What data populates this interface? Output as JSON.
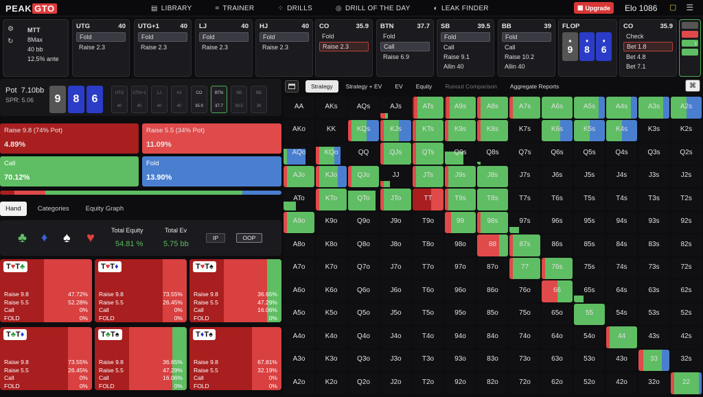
{
  "logo": {
    "text1": "PEAK",
    "text2": "GTO"
  },
  "nav": [
    {
      "label": "LIBRARY",
      "icon": "book-icon"
    },
    {
      "label": "TRAINER",
      "icon": "gamepad-icon"
    },
    {
      "label": "DRILLS",
      "icon": "dots-icon"
    },
    {
      "label": "DRILL OF THE DAY",
      "icon": "target-icon"
    },
    {
      "label": "LEAK FINDER",
      "icon": "drop-icon"
    }
  ],
  "upgrade_label": "Upgrade",
  "elo": "Elo 1086",
  "game_info": {
    "type": "MTT",
    "players": "8Max",
    "stack": "40 bb",
    "ante": "12.5% ante"
  },
  "positions": [
    {
      "name": "UTG",
      "stack": "40",
      "actions": [
        "Fold",
        "Raise 2.3"
      ],
      "selected": 0
    },
    {
      "name": "UTG+1",
      "stack": "40",
      "actions": [
        "Fold",
        "Raise 2.3"
      ],
      "selected": 0
    },
    {
      "name": "LJ",
      "stack": "40",
      "actions": [
        "Fold",
        "Raise 2.3"
      ],
      "selected": 0
    },
    {
      "name": "HJ",
      "stack": "40",
      "actions": [
        "Fold",
        "Raise 2.3"
      ],
      "selected": 0
    },
    {
      "name": "CO",
      "stack": "35.9",
      "actions": [
        "Fold",
        "Raise 2.3"
      ],
      "selected": 1
    },
    {
      "name": "BTN",
      "stack": "37.7",
      "actions": [
        "Fold",
        "Call",
        "Raise 6.9"
      ],
      "selected": 1
    },
    {
      "name": "SB",
      "stack": "39.5",
      "actions": [
        "Fold",
        "Call",
        "Raise 9.1",
        "Allin 40"
      ],
      "selected": 0
    },
    {
      "name": "BB",
      "stack": "39",
      "actions": [
        "Fold",
        "Call",
        "Raise 10.2",
        "Allin 40"
      ],
      "selected": 0
    }
  ],
  "flop": {
    "label": "FLOP",
    "cards": [
      "9",
      "8",
      "6"
    ]
  },
  "co_card": {
    "name": "CO",
    "stack": "35.9",
    "actions": [
      "Check",
      "Bet 1.8",
      "Bet 4.8",
      "Bet 7.1"
    ],
    "selected": 1
  },
  "pot": {
    "label": "Pot",
    "value": "7.10bb",
    "spr": "SPR: 5.06"
  },
  "board_cards": [
    "9",
    "8",
    "6"
  ],
  "pos_cols": [
    {
      "name": "UTG",
      "val": "40"
    },
    {
      "name": "UTG+1",
      "val": "40"
    },
    {
      "name": "LJ",
      "val": "40"
    },
    {
      "name": "HJ",
      "val": "40"
    },
    {
      "name": "CO",
      "val": "35.9"
    },
    {
      "name": "BTN",
      "val": "37.7"
    },
    {
      "name": "SB",
      "val": "39.5"
    },
    {
      "name": "BB",
      "val": "39"
    }
  ],
  "actions": [
    {
      "label": "Raise 9.8 (74% Pot)",
      "pct": "4.89%",
      "color": "#a91e1e"
    },
    {
      "label": "Raise 5.5 (34% Pot)",
      "pct": "11.09%",
      "color": "#e04a4a"
    },
    {
      "label": "Call",
      "pct": "70.12%",
      "color": "#5fbd63"
    },
    {
      "label": "Fold",
      "pct": "13.90%",
      "color": "#4a7fd0"
    }
  ],
  "tabs": [
    "Hand",
    "Categories",
    "Equity Graph"
  ],
  "equity": {
    "total_equity_label": "Total Equity",
    "total_equity": "54.81 %",
    "total_ev_label": "Total Ev",
    "total_ev": "5.75 bb",
    "ip": "IP",
    "oop": "OOP"
  },
  "combos": [
    {
      "hand": "T♥T♣",
      "lines": [
        [
          "Raise 9.8",
          "47.72%"
        ],
        [
          "Raise 5.5",
          "52.28%"
        ],
        [
          "Call",
          "0%"
        ],
        [
          "FOLD",
          "0%"
        ]
      ],
      "dark": 0.48,
      "green": 0
    },
    {
      "hand": "T♥T♦",
      "lines": [
        [
          "Raise 9.8",
          "73.55%"
        ],
        [
          "Raise 5.5",
          "26.45%"
        ],
        [
          "Call",
          "0%"
        ],
        [
          "FOLD",
          "0%"
        ]
      ],
      "dark": 0.74,
      "green": 0
    },
    {
      "hand": "T♥T♠",
      "lines": [
        [
          "Raise 9.8",
          "36.65%"
        ],
        [
          "Raise 5.5",
          "47.29%"
        ],
        [
          "Call",
          "16.06%"
        ],
        [
          "FOLD",
          "0%"
        ]
      ],
      "dark": 0.37,
      "green": 0.16
    },
    {
      "hand": "T♣T♦",
      "lines": [
        [
          "Raise 9.8",
          "73.55%"
        ],
        [
          "Raise 5.5",
          "26.45%"
        ],
        [
          "Call",
          "0%"
        ],
        [
          "FOLD",
          "0%"
        ]
      ],
      "dark": 0.74,
      "green": 0
    },
    {
      "hand": "T♣T♠",
      "lines": [
        [
          "Raise 9.8",
          "36.65%"
        ],
        [
          "Raise 5.5",
          "47.29%"
        ],
        [
          "Call",
          "16.06%"
        ],
        [
          "FOLD",
          "0%"
        ]
      ],
      "dark": 0.37,
      "green": 0.16
    },
    {
      "hand": "T♦T♠",
      "lines": [
        [
          "Raise 9.8",
          "67.81%"
        ],
        [
          "Raise 5.5",
          "32.19%"
        ],
        [
          "Call",
          "0%"
        ],
        [
          "FOLD",
          "0%"
        ]
      ],
      "dark": 0.68,
      "green": 0
    }
  ],
  "rtabs": [
    "Strategy",
    "Strategy + EV",
    "EV",
    "Equity",
    "Runout Comparison",
    "Aggregate Reports"
  ],
  "grid_ranks": [
    "A",
    "K",
    "Q",
    "J",
    "T",
    "9",
    "8",
    "7",
    "6",
    "5",
    "4",
    "3",
    "2"
  ],
  "grid_freq": {
    "ATs": [
      0.05,
      0.1,
      0.85,
      0
    ],
    "A9s": [
      0.05,
      0.1,
      0.85,
      0
    ],
    "A8s": [
      0,
      0.1,
      0.9,
      0
    ],
    "A7s": [
      0,
      0.12,
      0.88,
      0
    ],
    "A6s": [
      0,
      0,
      1,
      0
    ],
    "A5s": [
      0,
      0,
      0.8,
      0.2
    ],
    "A4s": [
      0,
      0,
      0.8,
      0.2
    ],
    "A3s": [
      0,
      0,
      0.8,
      0.2
    ],
    "A2s": [
      0,
      0,
      0.5,
      0.5
    ],
    "AJs": [
      0,
      0.15,
      0.1,
      0
    ],
    "KQs": [
      0,
      0.1,
      0.5,
      0.4
    ],
    "KJs": [
      0,
      0.1,
      0.5,
      0.4
    ],
    "KTs": [
      0,
      0.1,
      0.9,
      0
    ],
    "K9s": [
      0,
      0.1,
      0.9,
      0
    ],
    "K8s": [
      0,
      0.1,
      0.9,
      0
    ],
    "K6s": [
      0,
      0,
      0.6,
      0.4
    ],
    "K5s": [
      0,
      0,
      0.5,
      0.5
    ],
    "K4s": [
      0,
      0,
      0.5,
      0.5
    ],
    "AQo": [
      0,
      0,
      0.1,
      0.6
    ],
    "KQo": [
      0,
      0.1,
      0.5,
      0.2
    ],
    "QJs": [
      0,
      0.1,
      0.9,
      0
    ],
    "QTs": [
      0,
      0.1,
      0.9,
      0
    ],
    "Q9s": [
      0,
      0,
      0.6,
      0
    ],
    "Q8s": [
      0,
      0,
      0.1,
      0
    ],
    "AJo": [
      0,
      0.1,
      0.9,
      0
    ],
    "KJo": [
      0,
      0.1,
      0.6,
      0.3
    ],
    "QJo": [
      0,
      0.1,
      0.9,
      0
    ],
    "JJ": [
      0,
      0.1,
      0.2,
      0
    ],
    "JTs": [
      0,
      0.1,
      0.9,
      0
    ],
    "J9s": [
      0,
      0.1,
      0.9,
      0
    ],
    "J8s": [
      0,
      0,
      1,
      0
    ],
    "ATo": [
      0,
      0,
      0.4,
      0
    ],
    "KTo": [
      0,
      0.1,
      0.9,
      0
    ],
    "QTo": [
      0,
      0,
      0.9,
      0
    ],
    "JTo": [
      0,
      0.1,
      0.9,
      0
    ],
    "TT": [
      0.6,
      0.4,
      0,
      0
    ],
    "T9s": [
      0,
      0.1,
      0.9,
      0
    ],
    "T8s": [
      0,
      0,
      1,
      0
    ],
    "A9o": [
      0,
      0.1,
      0.9,
      0
    ],
    "99": [
      0,
      0.2,
      0.8,
      0
    ],
    "98s": [
      0,
      0.1,
      0.9,
      0
    ],
    "97s": [
      0,
      0,
      0.3,
      0
    ],
    "88": [
      0,
      0.7,
      0.3,
      0
    ],
    "87s": [
      0,
      0.1,
      0.9,
      0
    ],
    "77": [
      0,
      0.1,
      0.9,
      0
    ],
    "76s": [
      0,
      0.1,
      0.9,
      0
    ],
    "66": [
      0,
      0.5,
      0.5,
      0
    ],
    "65s": [
      0,
      0,
      0.3,
      0
    ],
    "55": [
      0,
      0,
      1,
      0
    ],
    "44": [
      0,
      0.1,
      0.9,
      0
    ],
    "33": [
      0,
      0.15,
      0.6,
      0.25
    ],
    "22": [
      0,
      0.1,
      0.8,
      0.1
    ]
  },
  "colors": {
    "dark_red": "#a91e1e",
    "red": "#e04a4a",
    "green": "#5fbd63",
    "blue": "#4a7fd0"
  }
}
